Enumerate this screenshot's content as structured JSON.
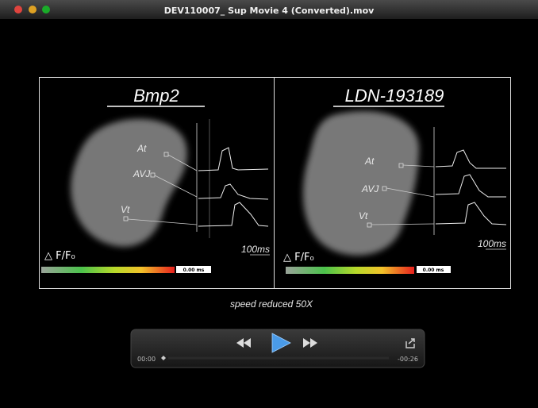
{
  "window": {
    "title": "DEV110007_ Sup Movie 4 (Converted).mov"
  },
  "video": {
    "panels": [
      {
        "title": "Bmp2",
        "labels": [
          "At",
          "AVJ",
          "Vt"
        ],
        "scale": "100ms",
        "legend": "△ F/F₀",
        "time": "0.00 ms"
      },
      {
        "title": "LDN-193189",
        "labels": [
          "At",
          "AVJ",
          "Vt"
        ],
        "scale": "100ms",
        "legend": "△ F/F₀",
        "time": "0.00 ms"
      }
    ],
    "caption": "speed reduced 50X"
  },
  "controls": {
    "elapsed": "00:00",
    "remaining": "-00:26"
  }
}
